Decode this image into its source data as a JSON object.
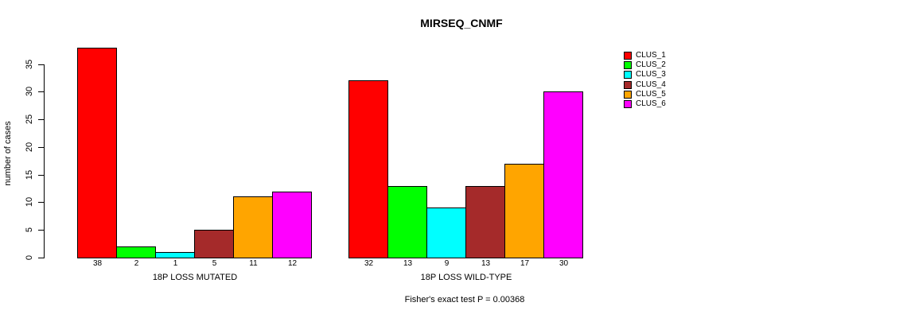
{
  "title": "MIRSEQ_CNMF",
  "footer": "Fisher's exact test P = 0.00368",
  "chart_data": {
    "type": "bar",
    "title": "MIRSEQ_CNMF",
    "ylabel": "number of cases",
    "ylim": [
      0,
      38
    ],
    "yticks": [
      0,
      5,
      10,
      15,
      20,
      25,
      30,
      35
    ],
    "grid": false,
    "legend_position": "right",
    "categories": [
      "18P LOSS MUTATED",
      "18P LOSS WILD-TYPE"
    ],
    "series": [
      {
        "name": "CLUS_1",
        "color": "#FF0000",
        "values": [
          38,
          32
        ]
      },
      {
        "name": "CLUS_2",
        "color": "#00FF00",
        "values": [
          2,
          13
        ]
      },
      {
        "name": "CLUS_3",
        "color": "#00FFFF",
        "values": [
          1,
          9
        ]
      },
      {
        "name": "CLUS_4",
        "color": "#A52A2A",
        "values": [
          5,
          13
        ]
      },
      {
        "name": "CLUS_5",
        "color": "#FFA500",
        "values": [
          11,
          17
        ]
      },
      {
        "name": "CLUS_6",
        "color": "#FF00FF",
        "values": [
          12,
          30
        ]
      }
    ],
    "annotation": "Fisher's exact test P = 0.00368"
  }
}
